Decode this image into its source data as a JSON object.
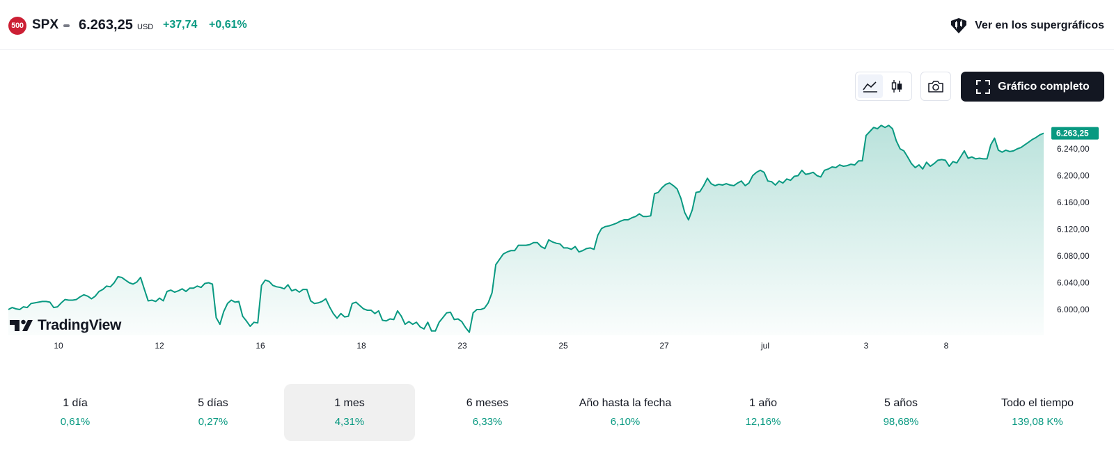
{
  "header": {
    "logo_badge": "500",
    "symbol": "SPX",
    "price": "6.263,25",
    "currency": "USD",
    "change": "+37,74",
    "change_pct": "+0,61%",
    "supercharts_label": "Ver en los supergráficos",
    "supercharts_icon": "supercharts-icon"
  },
  "toolbar": {
    "line_chart_icon": "area-chart-icon",
    "candles_icon": "candlestick-icon",
    "snapshot_icon": "camera-icon",
    "fullscreen_icon": "fullscreen-icon",
    "full_chart_label": "Gráfico completo"
  },
  "branding": {
    "logo_text": "TradingView"
  },
  "colors": {
    "line": "#089981",
    "accent": "#089981",
    "brand_red": "#cc1f34",
    "dark": "#131722"
  },
  "chart_data": {
    "type": "area",
    "title": "",
    "xlabel": "",
    "ylabel": "",
    "ylim": [
      5960,
      6280
    ],
    "y_ticks": [
      "6.240,00",
      "6.200,00",
      "6.160,00",
      "6.120,00",
      "6.080,00",
      "6.040,00",
      "6.000,00"
    ],
    "x_ticks": [
      "10",
      "12",
      "16",
      "18",
      "23",
      "25",
      "27",
      "jul",
      "3",
      "8"
    ],
    "last_price_label": "6.263,25",
    "grid": false,
    "series": [
      {
        "values": [
          6000,
          6003,
          6001,
          6000,
          6004,
          6003,
          6009,
          6010,
          6011,
          6012,
          6012,
          6011,
          6003,
          6004,
          6010,
          6015,
          6014,
          6014,
          6015,
          6019,
          6022,
          6020,
          6016,
          6020,
          6027,
          6030,
          6035,
          6034,
          6040,
          6049,
          6048,
          6044,
          6040,
          6038,
          6041,
          6048,
          6030,
          6013,
          6014,
          6012,
          6017,
          6013,
          6027,
          6029,
          6026,
          6028,
          6031,
          6027,
          6032,
          6032,
          6035,
          6033,
          6039,
          6040,
          6038,
          5988,
          5978,
          5997,
          6009,
          6014,
          6011,
          6012,
          5990,
          5983,
          5975,
          5981,
          5980,
          6036,
          6044,
          6042,
          6036,
          6034,
          6033,
          6031,
          6037,
          6028,
          6030,
          6026,
          6030,
          6030,
          6013,
          6009,
          6010,
          6012,
          6016,
          6004,
          5994,
          5987,
          5994,
          5989,
          5990,
          6009,
          6011,
          6006,
          6001,
          5999,
          5999,
          5994,
          5998,
          5984,
          5983,
          5986,
          5985,
          5998,
          5990,
          5978,
          5982,
          5978,
          5981,
          5974,
          5971,
          5981,
          5968,
          5968,
          5981,
          5988,
          5995,
          5996,
          5985,
          5986,
          5982,
          5973,
          5966,
          5995,
          6000,
          6000,
          6002,
          6010,
          6025,
          6067,
          6075,
          6083,
          6086,
          6088,
          6088,
          6096,
          6096,
          6096,
          6097,
          6100,
          6100,
          6094,
          6091,
          6104,
          6101,
          6099,
          6098,
          6092,
          6092,
          6090,
          6094,
          6086,
          6088,
          6091,
          6092,
          6090,
          6111,
          6121,
          6124,
          6125,
          6127,
          6129,
          6132,
          6134,
          6134,
          6137,
          6139,
          6143,
          6139,
          6139,
          6140,
          6173,
          6175,
          6182,
          6187,
          6189,
          6185,
          6180,
          6166,
          6145,
          6134,
          6149,
          6175,
          6176,
          6185,
          6196,
          6188,
          6185,
          6187,
          6186,
          6188,
          6186,
          6185,
          6189,
          6192,
          6185,
          6189,
          6200,
          6205,
          6208,
          6205,
          6192,
          6191,
          6186,
          6192,
          6189,
          6195,
          6193,
          6199,
          6200,
          6208,
          6202,
          6203,
          6205,
          6200,
          6198,
          6208,
          6210,
          6213,
          6212,
          6216,
          6214,
          6215,
          6217,
          6216,
          6222,
          6222,
          6260,
          6266,
          6272,
          6270,
          6275,
          6272,
          6275,
          6270,
          6252,
          6240,
          6237,
          6228,
          6218,
          6212,
          6216,
          6210,
          6220,
          6214,
          6218,
          6223,
          6224,
          6223,
          6214,
          6221,
          6219,
          6228,
          6237,
          6226,
          6228,
          6225,
          6226,
          6225,
          6225,
          6246,
          6256,
          6238,
          6235,
          6238,
          6236,
          6237,
          6240,
          6242,
          6246,
          6250,
          6254,
          6257,
          6261,
          6263.25
        ]
      }
    ]
  },
  "periods": [
    {
      "label": "1 día",
      "value": "0,61%"
    },
    {
      "label": "5 días",
      "value": "0,27%"
    },
    {
      "label": "1 mes",
      "value": "4,31%",
      "selected": true
    },
    {
      "label": "6 meses",
      "value": "6,33%"
    },
    {
      "label": "Año hasta la fecha",
      "value": "6,10%"
    },
    {
      "label": "1 año",
      "value": "12,16%"
    },
    {
      "label": "5 años",
      "value": "98,68%"
    },
    {
      "label": "Todo el tiempo",
      "value": "139,08 K%"
    }
  ]
}
